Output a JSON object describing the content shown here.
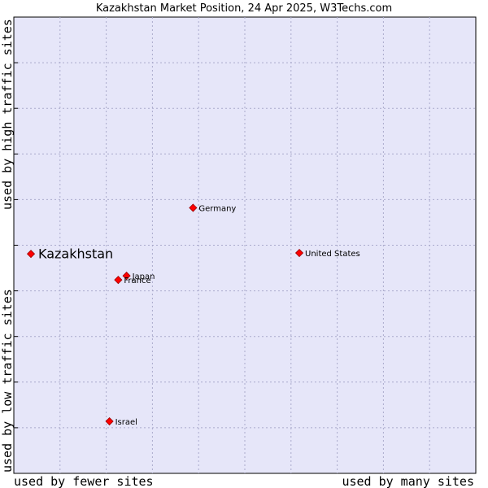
{
  "chart_data": {
    "type": "scatter",
    "title": "Kazakhstan Market Position, 24 Apr 2025, W3Techs.com",
    "xlabel_left": "used by fewer sites",
    "xlabel_right": "used by many sites",
    "ylabel_top": "used by high traffic sites",
    "ylabel_bottom": "used by low traffic sites",
    "xlim": [
      0,
      10
    ],
    "ylim": [
      0,
      10
    ],
    "grid": true,
    "colors": {
      "plot_bg": "#e6e6f9",
      "grid": "#aaaacc",
      "point": "#ff0000",
      "point_edge": "#990000"
    },
    "highlight": {
      "name": "Kazakhstan",
      "x": 0.37,
      "y": 4.81
    },
    "points": [
      {
        "name": "Germany",
        "x": 3.88,
        "y": 5.82
      },
      {
        "name": "United States",
        "x": 6.18,
        "y": 4.83
      },
      {
        "name": "Japan",
        "x": 2.44,
        "y": 4.33
      },
      {
        "name": "France",
        "x": 2.26,
        "y": 4.24
      },
      {
        "name": "Israel",
        "x": 2.07,
        "y": 1.14
      }
    ]
  }
}
